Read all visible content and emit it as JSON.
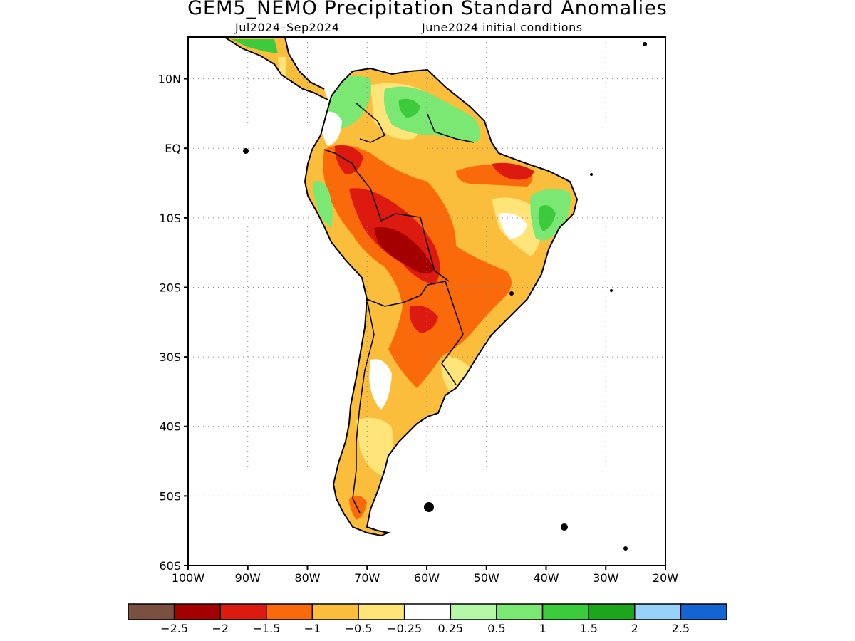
{
  "title": "GEM5_NEMO Precipitation Standard Anomalies",
  "subtitle_period": "Jul2024–Sep2024",
  "subtitle_init": "June2024 initial conditions",
  "axes": {
    "lat_labels": [
      "10N",
      "EQ",
      "10S",
      "20S",
      "30S",
      "40S",
      "50S",
      "60S"
    ],
    "lat_values": [
      10,
      0,
      -10,
      -20,
      -30,
      -40,
      -50,
      -60
    ],
    "lon_labels": [
      "100W",
      "90W",
      "80W",
      "70W",
      "60W",
      "50W",
      "40W",
      "30W",
      "20W"
    ],
    "lon_values": [
      -100,
      -90,
      -80,
      -70,
      -60,
      -50,
      -40,
      -30,
      -20
    ],
    "lon_range": [
      -100,
      -20
    ],
    "lat_range": [
      -60,
      16
    ],
    "grid": "dotted"
  },
  "colorbar": {
    "colors": [
      "#7a5040",
      "#a40000",
      "#dc1a10",
      "#fa6a0a",
      "#fbbd3c",
      "#ffe47a",
      "#ffffff",
      "#b4f7a8",
      "#7ce874",
      "#3ccb3c",
      "#1ea51e",
      "#96d2fa",
      "#1464d2"
    ],
    "labels": [
      "−2.5",
      "−2",
      "−1.5",
      "−1",
      "−0.5",
      "−0.25",
      "0.25",
      "0.5",
      "1",
      "1.5",
      "2",
      "2.5"
    ]
  },
  "land_color": "#fbbd3c",
  "anomaly_regions": [
    {
      "category": "−1",
      "color": "#fa6a0a",
      "lon": -62,
      "lat": -15
    },
    {
      "category": "−2",
      "color": "#a40000",
      "lon": -63,
      "lat": -14
    },
    {
      "category": "−1.5",
      "color": "#dc1a10",
      "lon": -47,
      "lat": -3
    },
    {
      "category": "1",
      "color": "#7ce874",
      "lon": -41,
      "lat": -10
    },
    {
      "category": "1",
      "color": "#7ce874",
      "lon": -72,
      "lat": 8
    },
    {
      "category": "0.25",
      "color": "#ffffff",
      "lon": -68,
      "lat": -37
    }
  ]
}
